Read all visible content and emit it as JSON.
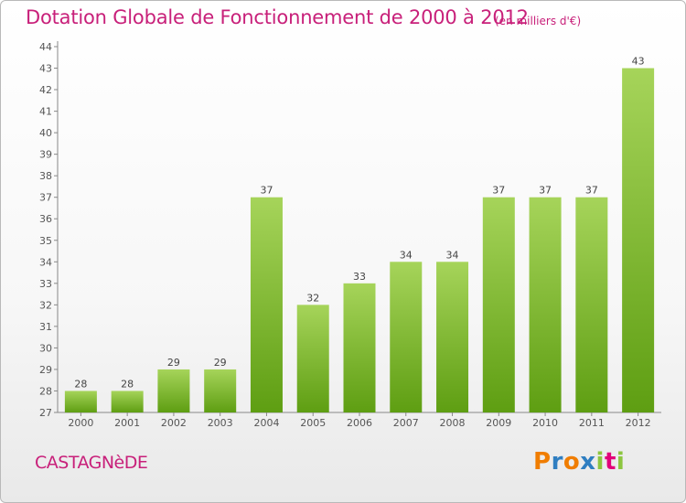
{
  "header": {
    "title": "Dotation Globale de Fonctionnement de 2000 à 2012",
    "unit": "(en milliers d'€)"
  },
  "footer": {
    "commune": "CASTAGNèDE",
    "logo_letters": [
      "P",
      "r",
      "o",
      "x",
      "i",
      "t",
      "i"
    ]
  },
  "colors": {
    "title": "#c8207a",
    "bar_top": "#a6d45a",
    "bar_bottom": "#5e9e12",
    "logo": [
      "#f07d00",
      "#2f7ec1",
      "#f07d00",
      "#2f7ec1",
      "#8cc63f",
      "#e2007a",
      "#8cc63f"
    ]
  },
  "chart_data": {
    "type": "bar",
    "title": "Dotation Globale de Fonctionnement de 2000 à 2012",
    "subtitle": "(en milliers d'€)",
    "categories": [
      "2000",
      "2001",
      "2002",
      "2003",
      "2004",
      "2005",
      "2006",
      "2007",
      "2008",
      "2009",
      "2010",
      "2011",
      "2012"
    ],
    "values": [
      28,
      28,
      29,
      29,
      37,
      32,
      33,
      34,
      34,
      37,
      37,
      37,
      43
    ],
    "ylim": [
      27,
      44
    ],
    "yticks": [
      27,
      28,
      29,
      30,
      31,
      32,
      33,
      34,
      35,
      36,
      37,
      38,
      39,
      40,
      41,
      42,
      43,
      44
    ],
    "grid": false,
    "legend": "none"
  }
}
